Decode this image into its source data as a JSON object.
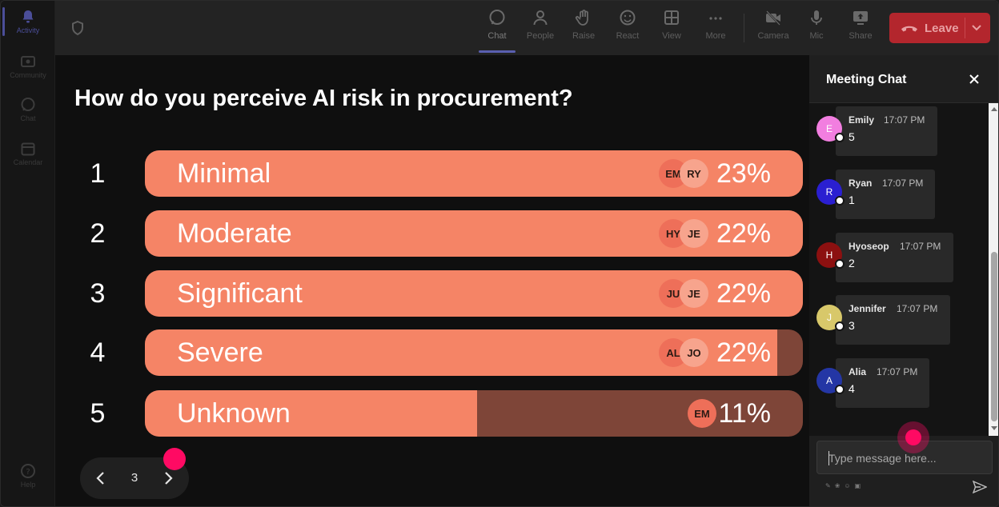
{
  "rail": {
    "items": [
      {
        "label": "Activity",
        "icon": "bell-icon",
        "active": true
      },
      {
        "label": "Community",
        "icon": "community-icon",
        "active": false
      },
      {
        "label": "Chat",
        "icon": "chat-icon",
        "active": false
      },
      {
        "label": "Calendar",
        "icon": "calendar-icon",
        "active": false
      }
    ],
    "help_label": "Help"
  },
  "toolbar": {
    "items": [
      {
        "label": "Chat",
        "icon": "chat-icon",
        "active": true
      },
      {
        "label": "People",
        "icon": "people-icon",
        "active": false
      },
      {
        "label": "Raise",
        "icon": "raise-hand-icon",
        "active": false
      },
      {
        "label": "React",
        "icon": "react-icon",
        "active": false
      },
      {
        "label": "View",
        "icon": "view-grid-icon",
        "active": false
      },
      {
        "label": "More",
        "icon": "more-icon",
        "active": false
      },
      {
        "label": "Camera",
        "icon": "camera-off-icon",
        "active": false
      },
      {
        "label": "Mic",
        "icon": "mic-icon",
        "active": false
      },
      {
        "label": "Share",
        "icon": "share-icon",
        "active": false
      }
    ],
    "leave_label": "Leave"
  },
  "poll": {
    "question": "How do you perceive AI risk in procurement?",
    "options": [
      {
        "num": "1",
        "label": "Minimal",
        "pct": "23%",
        "fill": 1.0,
        "chips": [
          "EM",
          "RY"
        ]
      },
      {
        "num": "2",
        "label": "Moderate",
        "pct": "22%",
        "fill": 1.0,
        "chips": [
          "HY",
          "JE"
        ]
      },
      {
        "num": "3",
        "label": "Significant",
        "pct": "22%",
        "fill": 1.0,
        "chips": [
          "JU",
          "JE"
        ]
      },
      {
        "num": "4",
        "label": "Severe",
        "pct": "22%",
        "fill": 0.961,
        "chips": [
          "AL",
          "JO"
        ]
      },
      {
        "num": "5",
        "label": "Unknown",
        "pct": "11%",
        "fill": 0.505,
        "chips": [
          "EM"
        ]
      }
    ],
    "colors": {
      "fill": "#f58466",
      "track": "#7e4538"
    }
  },
  "pager": {
    "page": "3"
  },
  "chat": {
    "title": "Meeting Chat",
    "messages": [
      {
        "initial": "E",
        "name": "Emily",
        "time": "17:07 PM",
        "text": "5",
        "color": "#f27ee0"
      },
      {
        "initial": "R",
        "name": "Ryan",
        "time": "17:07 PM",
        "text": "1",
        "color": "#2a1fd1"
      },
      {
        "initial": "H",
        "name": "Hyoseop",
        "time": "17:07 PM",
        "text": "2",
        "color": "#8c1010"
      },
      {
        "initial": "J",
        "name": "Jennifer",
        "time": "17:07 PM",
        "text": "3",
        "color": "#d8c86a"
      },
      {
        "initial": "A",
        "name": "Alia",
        "time": "17:07 PM",
        "text": "4",
        "color": "#2436a5"
      }
    ],
    "input_placeholder": "Type message here..."
  }
}
